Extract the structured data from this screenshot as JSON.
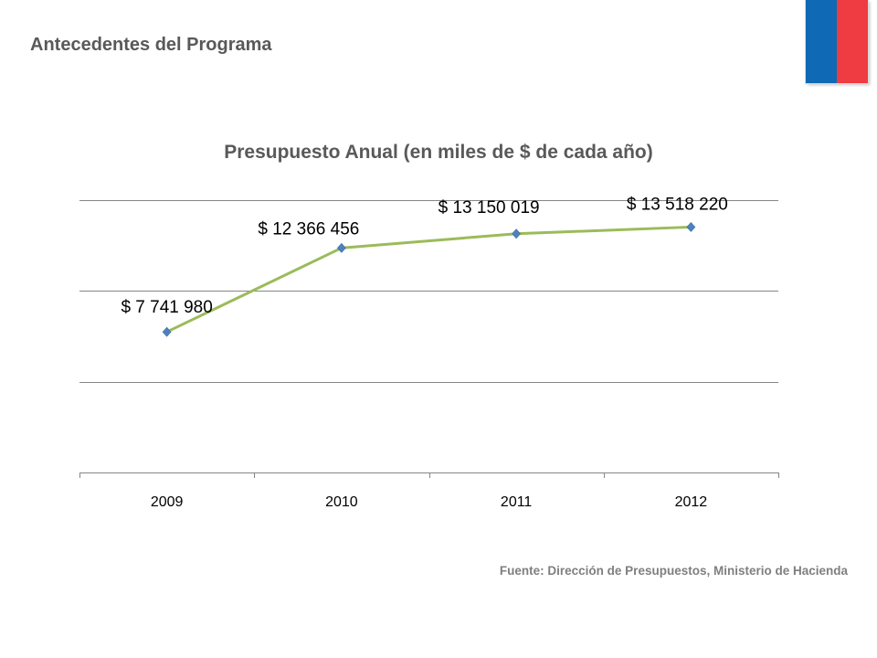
{
  "header": {
    "title": "Antecedentes del Programa"
  },
  "branding": {
    "flag_colors": [
      "#0f69b4",
      "#ef3b42"
    ]
  },
  "chart_data": {
    "type": "line",
    "title": "Presupuesto Anual (en miles de $ de cada año)",
    "xlabel": "",
    "ylabel": "",
    "categories": [
      "2009",
      "2010",
      "2011",
      "2012"
    ],
    "series": [
      {
        "values": [
          7741980,
          12366456,
          13150019,
          13518220
        ],
        "labels": [
          "$ 7 741 980",
          "$ 12 366 456",
          "$ 13 150 019",
          "$ 13 518 220"
        ],
        "color": "#9bbb59",
        "marker_color": "#4f81bd"
      }
    ],
    "ylim": [
      0,
      15000000
    ],
    "yticks": [
      0,
      5000000,
      10000000,
      15000000
    ],
    "y_axis_labels_visible": false,
    "grid": true,
    "legend": "none"
  },
  "footer": {
    "source": "Fuente: Dirección de Presupuestos, Ministerio de Hacienda"
  }
}
